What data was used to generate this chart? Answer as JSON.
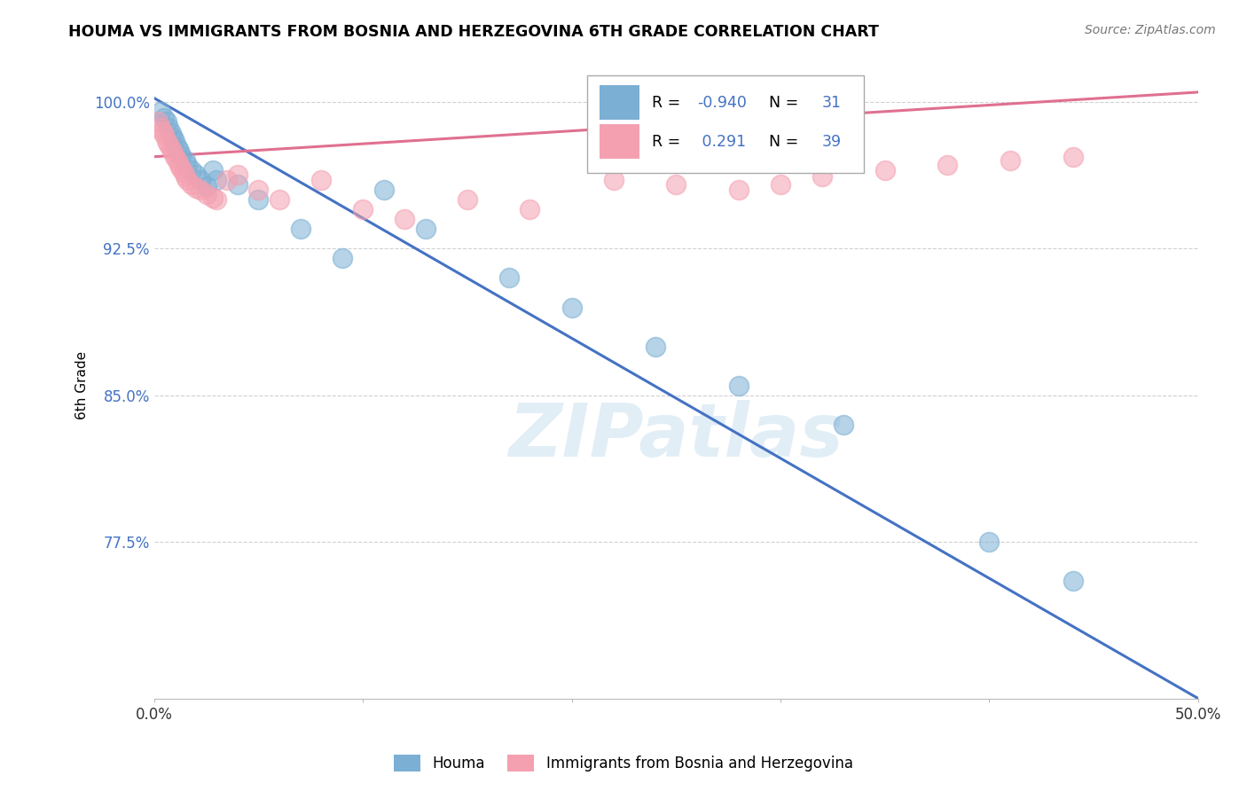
{
  "title": "HOUMA VS IMMIGRANTS FROM BOSNIA AND HERZEGOVINA 6TH GRADE CORRELATION CHART",
  "source": "Source: ZipAtlas.com",
  "ylabel": "6th Grade",
  "watermark": "ZIPatlas",
  "blue_R": -0.94,
  "blue_N": 31,
  "pink_R": 0.291,
  "pink_N": 39,
  "blue_label": "Houma",
  "pink_label": "Immigrants from Bosnia and Herzegovina",
  "blue_color": "#7BAFD4",
  "pink_color": "#F4A0B0",
  "blue_line_color": "#4472C4",
  "pink_line_color": "#E07090",
  "xlim": [
    0.0,
    0.5
  ],
  "ylim": [
    0.695,
    1.015
  ],
  "yticks": [
    1.0,
    0.925,
    0.85,
    0.775
  ],
  "ytick_labels": [
    "100.0%",
    "92.5%",
    "85.0%",
    "77.5%"
  ],
  "xticks": [
    0.0,
    0.1,
    0.2,
    0.3,
    0.4,
    0.5
  ],
  "xtick_labels": [
    "0.0%",
    "",
    "",
    "",
    "",
    "50.0%"
  ],
  "blue_line_x0": 0.0,
  "blue_line_y0": 1.002,
  "blue_line_x1": 0.5,
  "blue_line_y1": 0.695,
  "pink_line_x0": 0.0,
  "pink_line_y0": 0.972,
  "pink_line_x1": 0.5,
  "pink_line_y1": 1.005,
  "blue_x": [
    0.003,
    0.005,
    0.006,
    0.007,
    0.008,
    0.009,
    0.01,
    0.011,
    0.012,
    0.013,
    0.015,
    0.016,
    0.018,
    0.02,
    0.022,
    0.025,
    0.028,
    0.03,
    0.04,
    0.05,
    0.07,
    0.09,
    0.11,
    0.13,
    0.17,
    0.2,
    0.24,
    0.28,
    0.33,
    0.4,
    0.44
  ],
  "blue_y": [
    0.995,
    0.992,
    0.99,
    0.987,
    0.984,
    0.982,
    0.98,
    0.977,
    0.975,
    0.973,
    0.97,
    0.968,
    0.965,
    0.963,
    0.96,
    0.957,
    0.965,
    0.96,
    0.958,
    0.95,
    0.935,
    0.92,
    0.955,
    0.935,
    0.91,
    0.895,
    0.875,
    0.855,
    0.835,
    0.775,
    0.755
  ],
  "pink_x": [
    0.002,
    0.003,
    0.004,
    0.005,
    0.006,
    0.007,
    0.008,
    0.009,
    0.01,
    0.011,
    0.012,
    0.013,
    0.014,
    0.015,
    0.016,
    0.018,
    0.02,
    0.022,
    0.025,
    0.028,
    0.03,
    0.035,
    0.04,
    0.05,
    0.06,
    0.08,
    0.1,
    0.12,
    0.15,
    0.18,
    0.22,
    0.25,
    0.28,
    0.3,
    0.32,
    0.35,
    0.38,
    0.41,
    0.44
  ],
  "pink_y": [
    0.99,
    0.987,
    0.985,
    0.983,
    0.98,
    0.978,
    0.976,
    0.974,
    0.972,
    0.97,
    0.968,
    0.966,
    0.964,
    0.962,
    0.96,
    0.958,
    0.956,
    0.955,
    0.953,
    0.951,
    0.95,
    0.96,
    0.963,
    0.955,
    0.95,
    0.96,
    0.945,
    0.94,
    0.95,
    0.945,
    0.96,
    0.958,
    0.955,
    0.958,
    0.962,
    0.965,
    0.968,
    0.97,
    0.972
  ]
}
